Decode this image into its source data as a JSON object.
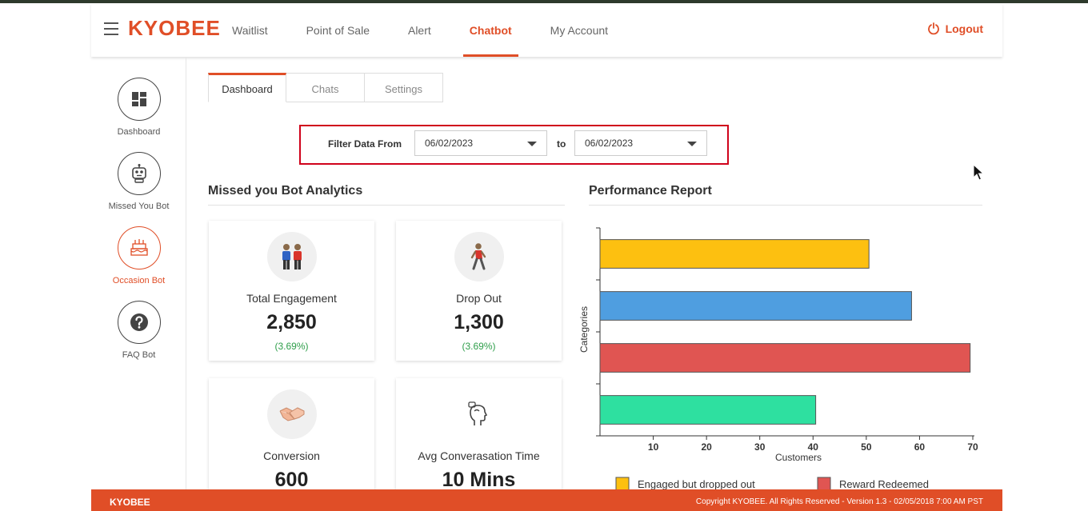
{
  "header": {
    "logo": "KYOBEE",
    "nav": [
      "Waitlist",
      "Point of Sale",
      "Alert",
      "Chatbot",
      "My Account"
    ],
    "active_nav": "Chatbot",
    "logout_label": "Logout",
    "accent_color": "#e04e27"
  },
  "sidebar": {
    "items": [
      {
        "label": "Dashboard",
        "icon": "dashboard-grid-icon"
      },
      {
        "label": "Missed You Bot",
        "icon": "robot-icon"
      },
      {
        "label": "Occasion Bot",
        "icon": "birthday-cake-icon"
      },
      {
        "label": "FAQ Bot",
        "icon": "question-icon"
      }
    ],
    "active": "Occasion Bot"
  },
  "tabs": {
    "items": [
      "Dashboard",
      "Chats",
      "Settings"
    ],
    "active": "Dashboard"
  },
  "filter": {
    "label": "Filter Data From",
    "from": "06/02/2023",
    "to_label": "to",
    "to": "06/02/2023"
  },
  "analytics": {
    "title": "Missed you Bot Analytics",
    "cards": [
      {
        "title": "Total Engagement",
        "value": "2,850",
        "pct": "(3.69%)",
        "icon": "people-icon"
      },
      {
        "title": "Drop Out",
        "value": "1,300",
        "pct": "(3.69%)",
        "icon": "walking-person-icon"
      },
      {
        "title": "Conversion",
        "value": "600",
        "icon": "handshake-icon"
      },
      {
        "title": "Avg Converasation Time",
        "value": "10 Mins",
        "icon": "talking-head-icon"
      }
    ]
  },
  "performance": {
    "title": "Performance Report"
  },
  "chart_data": {
    "type": "bar",
    "orientation": "horizontal",
    "xlabel": "Customers",
    "ylabel": "Categories",
    "xlim": [
      0,
      70
    ],
    "xticks": [
      10,
      20,
      30,
      40,
      50,
      60,
      70
    ],
    "grid": false,
    "bars": [
      {
        "value": 50.5,
        "color": "#fdc010"
      },
      {
        "value": 58.5,
        "color": "#4f9ee0"
      },
      {
        "value": 69.5,
        "color": "#e05552"
      },
      {
        "value": 40.5,
        "color": "#2ee0a0"
      }
    ],
    "legend": [
      {
        "label": "Engaged but dropped out",
        "color": "#fdc010"
      },
      {
        "label": "Reward Redeemed",
        "color": "#e05552"
      }
    ],
    "legend_position": "bottom"
  },
  "footer": {
    "brand": "KYOBEE",
    "copyright": "Copyright KYOBEE. All Rights Reserved - Version 1.3 - 02/05/2018 7:00 AM PST"
  }
}
